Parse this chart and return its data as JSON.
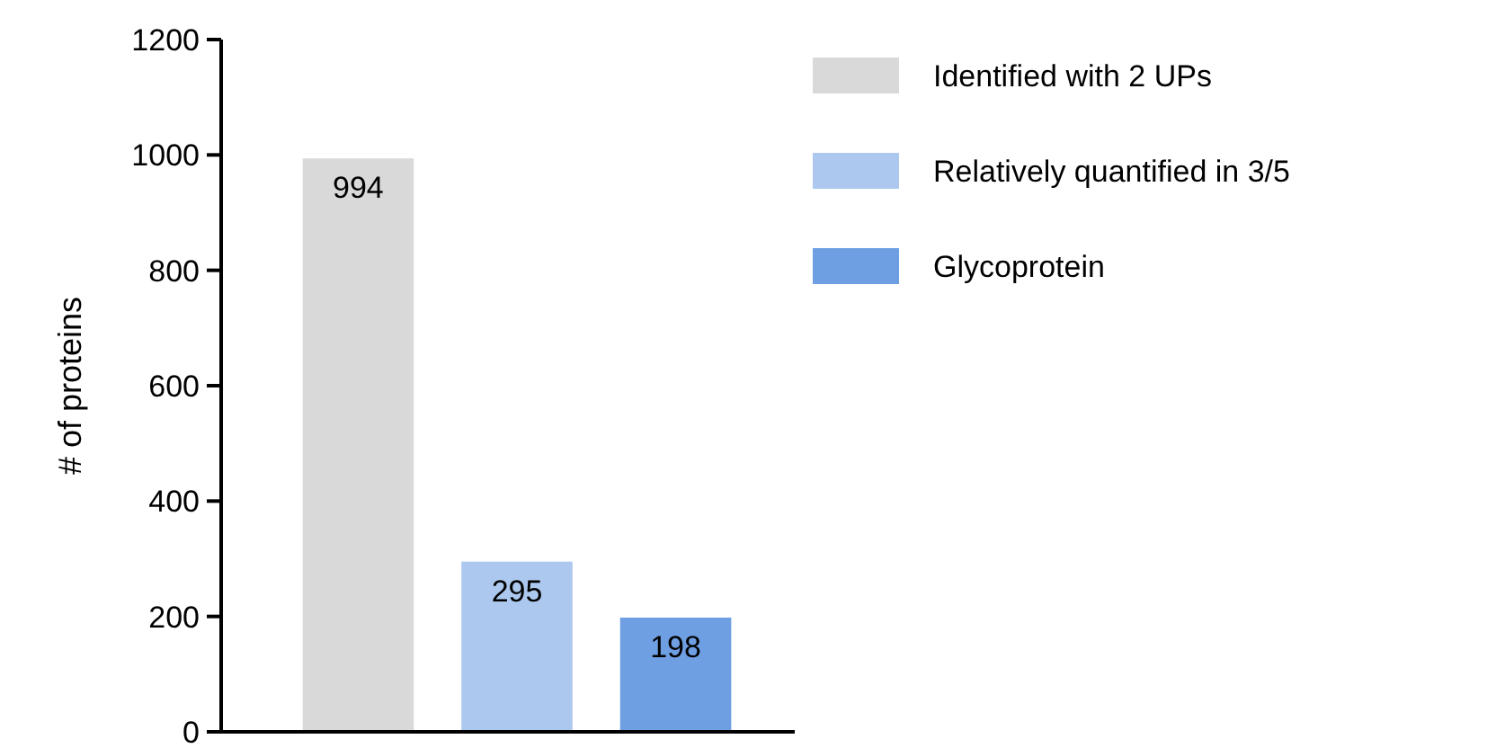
{
  "chart_data": {
    "type": "bar",
    "ylabel": "# of proteins",
    "categories": [
      null,
      null,
      null
    ],
    "data_labels": true,
    "legend": "top right",
    "ylim": [
      0,
      1200
    ],
    "yticks": [
      0,
      200,
      400,
      600,
      800,
      1000,
      1200
    ],
    "series": [
      {
        "name": "Identified with 2 UPs",
        "color": "#d9d9d9",
        "values": [
          994,
          null,
          null
        ]
      },
      {
        "name": "Relatively quantified in 3/5",
        "color": "#adc8ef",
        "values": [
          null,
          295,
          null
        ]
      },
      {
        "name": "Glycoprotein",
        "color": "#6e9fe3",
        "values": [
          null,
          null,
          198
        ]
      }
    ]
  }
}
